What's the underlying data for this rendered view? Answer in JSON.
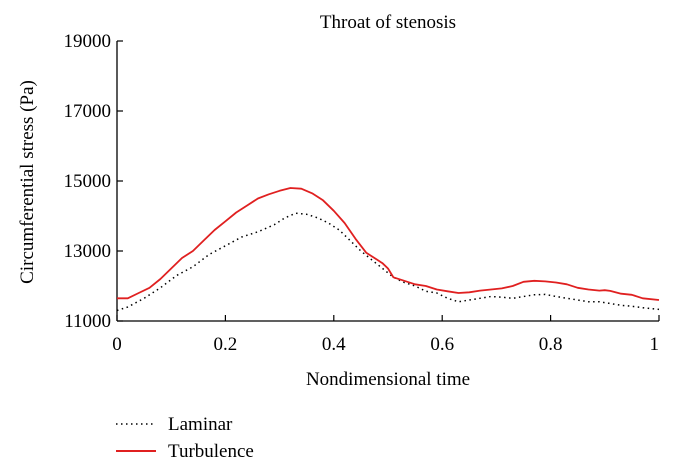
{
  "chart_data": {
    "type": "line",
    "title": "Throat of stenosis",
    "xlabel": "Nondimensional time",
    "ylabel": "Circumferential stress (Pa)",
    "xlim": [
      0,
      1
    ],
    "ylim": [
      11000,
      19000
    ],
    "x_ticks": [
      0,
      0.2,
      0.4,
      0.6,
      0.8,
      1
    ],
    "x_tick_labels": [
      "0",
      "0.2",
      "0.4",
      "0.6",
      "0.8",
      "1"
    ],
    "y_ticks": [
      11000,
      13000,
      15000,
      17000,
      19000
    ],
    "y_tick_labels": [
      "11000",
      "13000",
      "15000",
      "17000",
      "19000"
    ],
    "grid": false,
    "legend_position": "bottom-left",
    "series": [
      {
        "name": "Laminar",
        "color": "#000000",
        "style": "dotted",
        "points": [
          [
            0,
            11300
          ],
          [
            0.02,
            11400
          ],
          [
            0.05,
            11650
          ],
          [
            0.08,
            11950
          ],
          [
            0.11,
            12300
          ],
          [
            0.14,
            12550
          ],
          [
            0.17,
            12900
          ],
          [
            0.2,
            13150
          ],
          [
            0.23,
            13400
          ],
          [
            0.26,
            13550
          ],
          [
            0.29,
            13750
          ],
          [
            0.31,
            13950
          ],
          [
            0.33,
            14080
          ],
          [
            0.35,
            14050
          ],
          [
            0.37,
            13950
          ],
          [
            0.39,
            13800
          ],
          [
            0.41,
            13600
          ],
          [
            0.43,
            13300
          ],
          [
            0.45,
            13000
          ],
          [
            0.47,
            12750
          ],
          [
            0.49,
            12500
          ],
          [
            0.51,
            12250
          ],
          [
            0.53,
            12100
          ],
          [
            0.55,
            12000
          ],
          [
            0.57,
            11850
          ],
          [
            0.59,
            11800
          ],
          [
            0.61,
            11650
          ],
          [
            0.63,
            11550
          ],
          [
            0.65,
            11600
          ],
          [
            0.67,
            11650
          ],
          [
            0.69,
            11700
          ],
          [
            0.71,
            11680
          ],
          [
            0.73,
            11650
          ],
          [
            0.75,
            11700
          ],
          [
            0.77,
            11750
          ],
          [
            0.79,
            11760
          ],
          [
            0.81,
            11700
          ],
          [
            0.83,
            11650
          ],
          [
            0.85,
            11600
          ],
          [
            0.87,
            11550
          ],
          [
            0.89,
            11550
          ],
          [
            0.91,
            11500
          ],
          [
            0.93,
            11450
          ],
          [
            0.95,
            11420
          ],
          [
            0.97,
            11380
          ],
          [
            1,
            11330
          ]
        ]
      },
      {
        "name": "Turbulence",
        "color": "#e02020",
        "style": "solid",
        "points": [
          [
            0,
            11650
          ],
          [
            0.02,
            11650
          ],
          [
            0.04,
            11800
          ],
          [
            0.06,
            11950
          ],
          [
            0.08,
            12200
          ],
          [
            0.1,
            12500
          ],
          [
            0.12,
            12800
          ],
          [
            0.14,
            13000
          ],
          [
            0.16,
            13300
          ],
          [
            0.18,
            13600
          ],
          [
            0.2,
            13850
          ],
          [
            0.22,
            14100
          ],
          [
            0.24,
            14300
          ],
          [
            0.26,
            14500
          ],
          [
            0.28,
            14620
          ],
          [
            0.3,
            14720
          ],
          [
            0.32,
            14800
          ],
          [
            0.34,
            14780
          ],
          [
            0.36,
            14650
          ],
          [
            0.38,
            14450
          ],
          [
            0.4,
            14150
          ],
          [
            0.42,
            13800
          ],
          [
            0.44,
            13350
          ],
          [
            0.46,
            12950
          ],
          [
            0.48,
            12750
          ],
          [
            0.49,
            12650
          ],
          [
            0.5,
            12500
          ],
          [
            0.51,
            12250
          ],
          [
            0.53,
            12150
          ],
          [
            0.55,
            12050
          ],
          [
            0.57,
            12000
          ],
          [
            0.59,
            11900
          ],
          [
            0.61,
            11850
          ],
          [
            0.63,
            11800
          ],
          [
            0.65,
            11820
          ],
          [
            0.67,
            11870
          ],
          [
            0.69,
            11900
          ],
          [
            0.71,
            11930
          ],
          [
            0.73,
            12000
          ],
          [
            0.75,
            12120
          ],
          [
            0.77,
            12150
          ],
          [
            0.79,
            12130
          ],
          [
            0.81,
            12100
          ],
          [
            0.83,
            12050
          ],
          [
            0.85,
            11950
          ],
          [
            0.87,
            11900
          ],
          [
            0.89,
            11870
          ],
          [
            0.9,
            11880
          ],
          [
            0.91,
            11860
          ],
          [
            0.93,
            11780
          ],
          [
            0.95,
            11750
          ],
          [
            0.97,
            11650
          ],
          [
            1,
            11600
          ]
        ]
      }
    ]
  }
}
